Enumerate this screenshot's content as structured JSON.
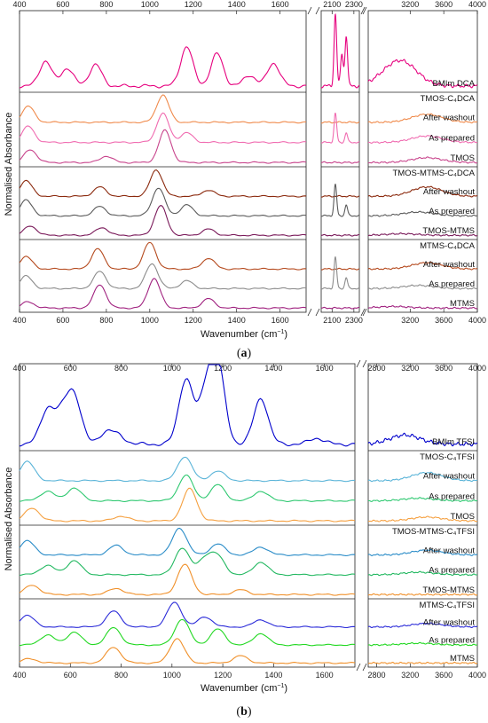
{
  "figure": {
    "y_axis_label": "Normalised Absorbance",
    "x_axis_label": "Wavenumber (cm⁻¹)",
    "x_axis_label_plain": "Wavenumber (cm",
    "x_axis_label_sup": "−1",
    "x_axis_label_end": ")"
  },
  "chart_data": [
    {
      "type": "line",
      "panel_label": "(a)",
      "panel_letter": "a",
      "xlabel": "Wavenumber (cm⁻¹)",
      "ylabel": "Normalised Absorbance",
      "x_segments": [
        {
          "xlim": [
            400,
            1720
          ],
          "ticks": [
            400,
            600,
            800,
            1000,
            1200,
            1400,
            1600
          ]
        },
        {
          "xlim": [
            2000,
            2350
          ],
          "ticks": [
            2100,
            2300
          ]
        },
        {
          "xlim": [
            2700,
            4000
          ],
          "ticks": [
            3200,
            3600,
            4000
          ]
        }
      ],
      "top_tick_labels": [
        "400",
        "600",
        "800",
        "1000",
        "1200",
        "1400",
        "1600",
        "2100",
        "2300",
        "3200",
        "3600",
        "4000"
      ],
      "bottom_tick_labels": [
        "400",
        "600",
        "800",
        "1000",
        "1200",
        "1400",
        "1600",
        "2100",
        "2300",
        "3200",
        "3600",
        "4000"
      ],
      "groups": [
        {
          "title": "",
          "series": [
            {
              "name": "BMIm DCA",
              "color": "#e6007e",
              "peaks": [
                [
                  520,
                  0.35
                ],
                [
                  620,
                  0.25
                ],
                [
                  750,
                  0.3
                ],
                [
                  1170,
                  0.55
                ],
                [
                  1310,
                  0.45
                ],
                [
                  1460,
                  0.15
                ],
                [
                  1570,
                  0.32
                ],
                [
                  2130,
                  1.0
                ],
                [
                  2190,
                  0.45
                ],
                [
                  2230,
                  0.7
                ],
                [
                  2960,
                  0.12
                ],
                [
                  3100,
                  0.15
                ],
                [
                  3150,
                  0.12
                ]
              ]
            }
          ]
        },
        {
          "title": "TMOS-C₄DCA",
          "series": [
            {
              "name": "After washout",
              "color": "#f08a4b",
              "peaks": [
                [
                  440,
                  0.5
                ],
                [
                  1060,
                  0.85
                ],
                [
                  3400,
                  0.25
                ]
              ]
            },
            {
              "name": "As prepared",
              "color": "#f06bb0",
              "peaks": [
                [
                  440,
                  0.5
                ],
                [
                  1060,
                  0.9
                ],
                [
                  1170,
                  0.3
                ],
                [
                  2130,
                  0.9
                ],
                [
                  2230,
                  0.3
                ],
                [
                  3400,
                  0.2
                ]
              ]
            },
            {
              "name": "TMOS",
              "color": "#c8448c",
              "peaks": [
                [
                  450,
                  0.4
                ],
                [
                  800,
                  0.2
                ],
                [
                  1070,
                  1.0
                ],
                [
                  3400,
                  0.15
                ]
              ]
            }
          ]
        },
        {
          "title": "TMOS-MTMS-C₄DCA",
          "series": [
            {
              "name": "After washout",
              "color": "#8b2a0e",
              "peaks": [
                [
                  430,
                  0.5
                ],
                [
                  770,
                  0.3
                ],
                [
                  1030,
                  0.85
                ],
                [
                  1270,
                  0.2
                ],
                [
                  3400,
                  0.3
                ]
              ]
            },
            {
              "name": "As prepared",
              "color": "#5a5a5a",
              "peaks": [
                [
                  430,
                  0.5
                ],
                [
                  770,
                  0.3
                ],
                [
                  1040,
                  0.9
                ],
                [
                  1170,
                  0.35
                ],
                [
                  2130,
                  1.0
                ],
                [
                  2230,
                  0.35
                ],
                [
                  3300,
                  0.12
                ]
              ]
            },
            {
              "name": "TMOS-MTMS",
              "color": "#7a1a5a",
              "peaks": [
                [
                  450,
                  0.3
                ],
                [
                  780,
                  0.25
                ],
                [
                  1050,
                  0.95
                ],
                [
                  1270,
                  0.2
                ],
                [
                  3100,
                  0.05
                ]
              ]
            }
          ]
        },
        {
          "title": "MTMS-C₄DCA",
          "series": [
            {
              "name": "After washout",
              "color": "#b54a1e",
              "peaks": [
                [
                  430,
                  0.4
                ],
                [
                  760,
                  0.65
                ],
                [
                  1000,
                  0.85
                ],
                [
                  1270,
                  0.35
                ],
                [
                  3400,
                  0.2
                ]
              ]
            },
            {
              "name": "As prepared",
              "color": "#8c8c8c",
              "peaks": [
                [
                  430,
                  0.4
                ],
                [
                  770,
                  0.55
                ],
                [
                  1010,
                  0.8
                ],
                [
                  1170,
                  0.25
                ],
                [
                  2130,
                  1.0
                ],
                [
                  2230,
                  0.35
                ],
                [
                  3300,
                  0.1
                ]
              ]
            },
            {
              "name": "MTMS",
              "color": "#a0217f",
              "peaks": [
                [
                  440,
                  0.2
                ],
                [
                  770,
                  0.75
                ],
                [
                  1020,
                  0.95
                ],
                [
                  1270,
                  0.3
                ],
                [
                  3000,
                  0.05
                ]
              ]
            }
          ]
        }
      ]
    },
    {
      "type": "line",
      "panel_label": "(b)",
      "panel_letter": "b",
      "xlabel": "Wavenumber (cm⁻¹)",
      "ylabel": "Normalised Absorbance",
      "x_segments": [
        {
          "xlim": [
            400,
            1720
          ],
          "ticks": [
            400,
            600,
            800,
            1000,
            1200,
            1400,
            1600
          ]
        },
        {
          "xlim": [
            2700,
            4000
          ],
          "ticks": [
            2800,
            3200,
            3600,
            4000
          ]
        }
      ],
      "top_tick_labels": [
        "400",
        "600",
        "800",
        "1000",
        "1200",
        "1400",
        "1600",
        "2800",
        "3200",
        "3600",
        "4000"
      ],
      "bottom_tick_labels": [
        "400",
        "600",
        "800",
        "1000",
        "1200",
        "1400",
        "1600",
        "2800",
        "3200",
        "3600",
        "4000"
      ],
      "groups": [
        {
          "title": "",
          "series": [
            {
              "name": "BMIm TFSI",
              "color": "#0000cc",
              "peaks": [
                [
                  510,
                  0.45
                ],
                [
                  570,
                  0.35
                ],
                [
                  615,
                  0.6
                ],
                [
                  740,
                  0.15
                ],
                [
                  790,
                  0.1
                ],
                [
                  1055,
                  0.85
                ],
                [
                  1135,
                  0.65
                ],
                [
                  1180,
                  1.0
                ],
                [
                  1350,
                  0.6
                ],
                [
                  1570,
                  0.08
                ],
                [
                  3120,
                  0.06
                ],
                [
                  3160,
                  0.06
                ]
              ]
            }
          ]
        },
        {
          "title": "TMOS-C₄TFSI",
          "series": [
            {
              "name": "After washout",
              "color": "#5ab4d8",
              "peaks": [
                [
                  430,
                  0.6
                ],
                [
                  1050,
                  0.75
                ],
                [
                  1180,
                  0.3
                ],
                [
                  3400,
                  0.25
                ]
              ]
            },
            {
              "name": "As prepared",
              "color": "#2ec870",
              "peaks": [
                [
                  510,
                  0.3
                ],
                [
                  615,
                  0.4
                ],
                [
                  1055,
                  0.8
                ],
                [
                  1180,
                  0.5
                ],
                [
                  1350,
                  0.3
                ],
                [
                  3300,
                  0.08
                ]
              ]
            },
            {
              "name": "TMOS",
              "color": "#f5a040",
              "peaks": [
                [
                  450,
                  0.4
                ],
                [
                  800,
                  0.15
                ],
                [
                  1070,
                  1.0
                ],
                [
                  3400,
                  0.12
                ]
              ]
            }
          ]
        },
        {
          "title": "TMOS-MTMS-C₄TFSI",
          "series": [
            {
              "name": "After washout",
              "color": "#2a8cc8",
              "peaks": [
                [
                  430,
                  0.45
                ],
                [
                  780,
                  0.3
                ],
                [
                  1030,
                  0.85
                ],
                [
                  1180,
                  0.35
                ],
                [
                  1350,
                  0.25
                ],
                [
                  3400,
                  0.15
                ]
              ]
            },
            {
              "name": "As prepared",
              "color": "#22b860",
              "peaks": [
                [
                  510,
                  0.3
                ],
                [
                  615,
                  0.45
                ],
                [
                  1040,
                  0.85
                ],
                [
                  1130,
                  0.5
                ],
                [
                  1180,
                  0.55
                ],
                [
                  1350,
                  0.4
                ],
                [
                  3300,
                  0.08
                ]
              ]
            },
            {
              "name": "TMOS-MTMS",
              "color": "#f0902a",
              "peaks": [
                [
                  450,
                  0.3
                ],
                [
                  780,
                  0.2
                ],
                [
                  1050,
                  0.95
                ],
                [
                  1270,
                  0.15
                ]
              ]
            }
          ]
        },
        {
          "title": "MTMS-C₄TFSI",
          "series": [
            {
              "name": "After washout",
              "color": "#2a2ad8",
              "peaks": [
                [
                  430,
                  0.4
                ],
                [
                  770,
                  0.55
                ],
                [
                  1010,
                  0.85
                ],
                [
                  1130,
                  0.35
                ],
                [
                  1350,
                  0.25
                ],
                [
                  3400,
                  0.12
                ]
              ]
            },
            {
              "name": "As prepared",
              "color": "#22d822",
              "peaks": [
                [
                  510,
                  0.35
                ],
                [
                  615,
                  0.45
                ],
                [
                  770,
                  0.6
                ],
                [
                  1040,
                  0.9
                ],
                [
                  1180,
                  0.55
                ],
                [
                  1350,
                  0.4
                ],
                [
                  3300,
                  0.06
                ]
              ]
            },
            {
              "name": "MTMS",
              "color": "#f0902a",
              "peaks": [
                [
                  440,
                  0.15
                ],
                [
                  770,
                  0.55
                ],
                [
                  1020,
                  0.85
                ],
                [
                  1270,
                  0.25
                ]
              ]
            }
          ]
        }
      ]
    }
  ]
}
